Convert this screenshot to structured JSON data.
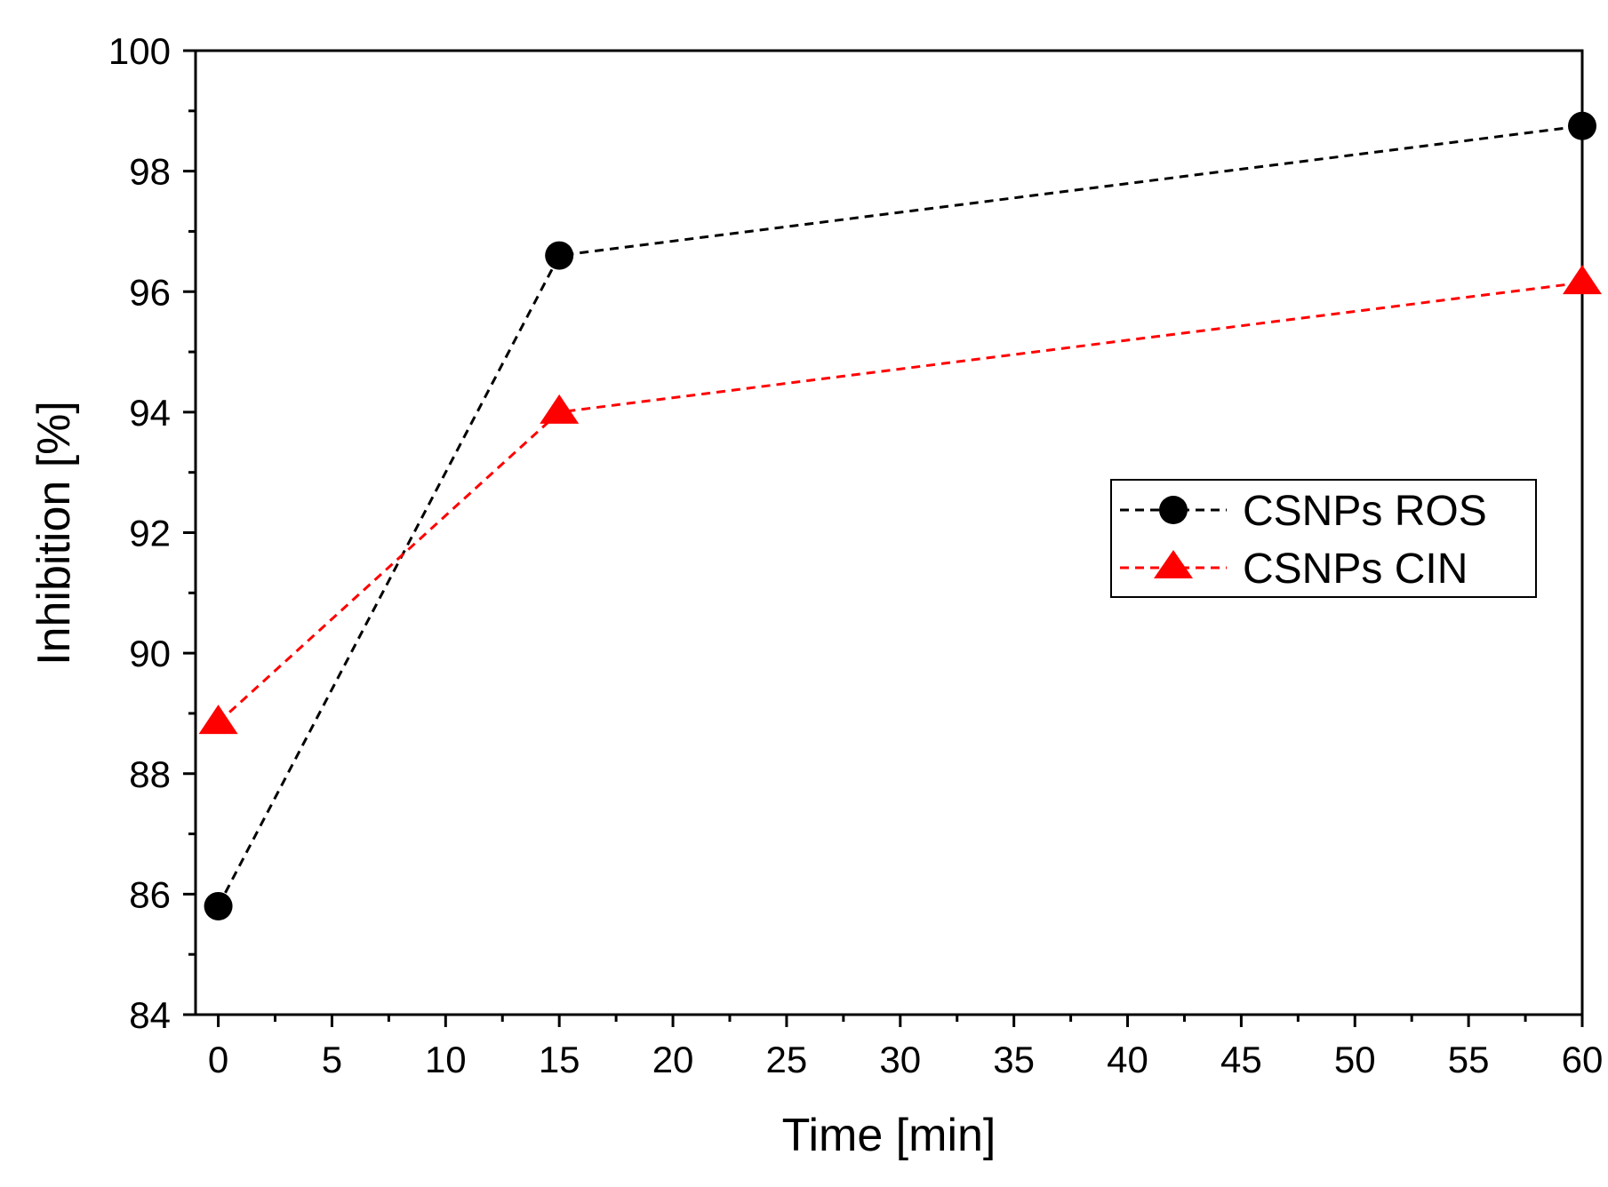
{
  "chart_data": {
    "type": "line",
    "xlabel": "Time [min]",
    "ylabel": "Inhibition [%]",
    "xlim": [
      -1,
      60
    ],
    "ylim": [
      84,
      100
    ],
    "xticks": [
      0,
      5,
      10,
      15,
      20,
      25,
      30,
      35,
      40,
      45,
      50,
      55,
      60
    ],
    "xtick_labels": [
      "0",
      "5",
      "10",
      "15",
      "20",
      "25",
      "30",
      "35",
      "40",
      "45",
      "50",
      "55",
      "60"
    ],
    "yticks": [
      84,
      86,
      88,
      90,
      92,
      94,
      96,
      98,
      100
    ],
    "ytick_labels": [
      "84",
      "86",
      "88",
      "90",
      "92",
      "94",
      "96",
      "98",
      "100"
    ],
    "grid": false,
    "legend_position": "middle-right",
    "series": [
      {
        "name": "CSNPs ROS",
        "x": [
          0,
          15,
          60
        ],
        "values": [
          85.8,
          96.6,
          98.75
        ],
        "color": "#000000",
        "marker": "circle",
        "linestyle": "dashed"
      },
      {
        "name": "CSNPs CIN",
        "x": [
          0,
          15,
          60
        ],
        "values": [
          88.85,
          94.0,
          96.15
        ],
        "color": "#ff0000",
        "marker": "triangle",
        "linestyle": "dashed"
      }
    ]
  }
}
